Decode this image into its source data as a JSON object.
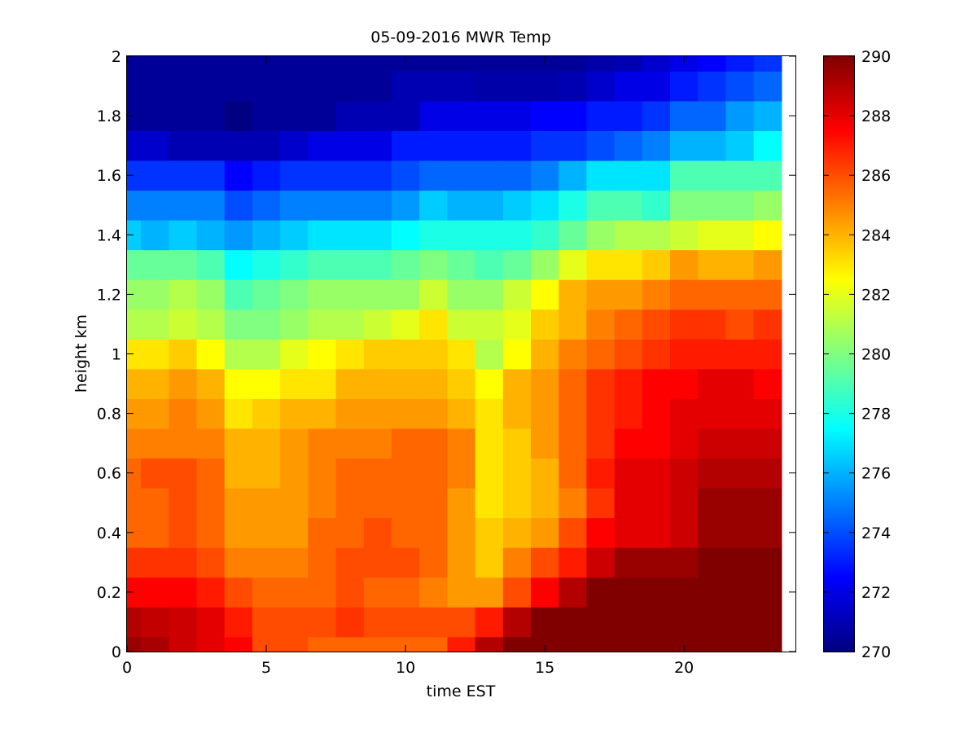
{
  "chart_data": {
    "type": "heatmap",
    "title": "05-09-2016 MWR Temp",
    "xlabel": "time EST",
    "ylabel": "height km",
    "xlim": [
      0,
      24
    ],
    "ylim": [
      0,
      2
    ],
    "x_ticks": [
      "0",
      "5",
      "10",
      "15",
      "20"
    ],
    "x_tick_values": [
      0,
      5,
      10,
      15,
      20
    ],
    "y_ticks": [
      "0",
      "0.2",
      "0.4",
      "0.6",
      "0.8",
      "1",
      "1.2",
      "1.4",
      "1.6",
      "1.8",
      "2"
    ],
    "y_tick_values": [
      0,
      0.2,
      0.4,
      0.6,
      0.8,
      1,
      1.2,
      1.4,
      1.6,
      1.8,
      2
    ],
    "colormap": "jet",
    "colorbar": {
      "limits": [
        270,
        290
      ],
      "ticks": [
        "270",
        "272",
        "274",
        "276",
        "278",
        "280",
        "282",
        "284",
        "286",
        "288",
        "290"
      ],
      "tick_values": [
        270,
        272,
        274,
        276,
        278,
        280,
        282,
        284,
        286,
        288,
        290
      ]
    },
    "x_edges": [
      0,
      0.5,
      1.5,
      2.5,
      3.5,
      4.5,
      5.5,
      6.5,
      7.5,
      8.5,
      9.5,
      10.5,
      11.5,
      12.5,
      13.5,
      14.5,
      15.5,
      16.5,
      17.5,
      18.5,
      19.5,
      20.5,
      21.5,
      22.5,
      23.5
    ],
    "y_edges": [
      0,
      0.05,
      0.15,
      0.25,
      0.35,
      0.45,
      0.55,
      0.65,
      0.75,
      0.85,
      0.95,
      1.05,
      1.15,
      1.25,
      1.35,
      1.45,
      1.55,
      1.65,
      1.75,
      1.85,
      1.95,
      2.0
    ],
    "values": [
      [
        289.5,
        289.2,
        288.5,
        288,
        287.5,
        286,
        286,
        285.5,
        285.5,
        285.5,
        285.5,
        285.5,
        287,
        289,
        290,
        290,
        290,
        290,
        290,
        290,
        290,
        290,
        290,
        290
      ],
      [
        289,
        288.7,
        288.5,
        288,
        287,
        286,
        286,
        286,
        286.5,
        286,
        286,
        286,
        286,
        287,
        289,
        290,
        290,
        290,
        290,
        290,
        290,
        290,
        290,
        290
      ],
      [
        287.5,
        287.5,
        287.5,
        287,
        286,
        285.5,
        285.5,
        285.5,
        286,
        285.5,
        285.5,
        285,
        284.5,
        284.5,
        286,
        287.5,
        289,
        290,
        290,
        290,
        290,
        290,
        290,
        290
      ],
      [
        286.5,
        286.5,
        286.5,
        286,
        285,
        285,
        285,
        285.5,
        286,
        286,
        286,
        285.5,
        284.5,
        283.5,
        285,
        286,
        287,
        288.5,
        289.5,
        289.5,
        289.5,
        290,
        290,
        290
      ],
      [
        285.5,
        285.5,
        286,
        285.5,
        284.5,
        284.5,
        284.5,
        285.5,
        285.5,
        286,
        285.5,
        285.5,
        284.5,
        283.5,
        284,
        284.5,
        286,
        287.5,
        288,
        288,
        288.5,
        289.5,
        289.5,
        289.5
      ],
      [
        285.5,
        285.5,
        286,
        285.5,
        284.5,
        284.5,
        284.5,
        285,
        285.5,
        285.5,
        285.5,
        285.5,
        284.5,
        283,
        283.5,
        284,
        285,
        286.5,
        288,
        288,
        288.5,
        289.5,
        289.5,
        289.5
      ],
      [
        285.5,
        286,
        286,
        285.5,
        284,
        284,
        284.5,
        285,
        285.5,
        285.5,
        285.5,
        285.5,
        285,
        283,
        283.5,
        284,
        285.5,
        287,
        288,
        288,
        288.5,
        289,
        289,
        289
      ],
      [
        285,
        285,
        285,
        285,
        284,
        284,
        284.5,
        285,
        285,
        285,
        285.5,
        285.5,
        285,
        283,
        283.5,
        284.5,
        285.5,
        286.5,
        287.5,
        287.5,
        288,
        288.5,
        288.5,
        288.5
      ],
      [
        284.5,
        284.5,
        285,
        284.5,
        283,
        283.5,
        284,
        284,
        284.5,
        284.5,
        284.5,
        284.5,
        284,
        283,
        284,
        284.5,
        285.5,
        286.5,
        287,
        287.5,
        288,
        288,
        288,
        288
      ],
      [
        284,
        284,
        284.5,
        284,
        282.5,
        282.5,
        283,
        283,
        284,
        284,
        284,
        284,
        283.5,
        282.5,
        284,
        284.5,
        285.5,
        286.5,
        287,
        287.5,
        287.5,
        288,
        288,
        287.5
      ],
      [
        283,
        283,
        283.5,
        282.5,
        281,
        281,
        282,
        282.5,
        283,
        283.5,
        283.5,
        283.5,
        283,
        281,
        282.5,
        284,
        285,
        285.5,
        286,
        286.5,
        287,
        287,
        287,
        287
      ],
      [
        281,
        281,
        281.5,
        281,
        280,
        280,
        280.5,
        281,
        281,
        281.5,
        282,
        283,
        281.5,
        281.5,
        282,
        283.5,
        284,
        285,
        285.5,
        286,
        286.5,
        286.5,
        286,
        286.5
      ],
      [
        280.5,
        280.5,
        281,
        280.5,
        279,
        279.5,
        280,
        280.5,
        280.5,
        280.5,
        280.5,
        281.5,
        280.5,
        280.5,
        281.5,
        282.5,
        284,
        284.5,
        284.5,
        285,
        285.5,
        285.5,
        285.5,
        285.5
      ],
      [
        279.5,
        279.5,
        279.5,
        279,
        277.5,
        278,
        278.5,
        279,
        279,
        279,
        279.5,
        280,
        279.5,
        279,
        279.5,
        280.5,
        282,
        283,
        283,
        283.5,
        284.5,
        284,
        284,
        284.5
      ],
      [
        276.5,
        276,
        276.5,
        276,
        275.5,
        276,
        276.5,
        277,
        277,
        277,
        277.5,
        278,
        278,
        278,
        278,
        278.5,
        279.5,
        280.5,
        281,
        281,
        281.5,
        282,
        282,
        282.5
      ],
      [
        275,
        275,
        275,
        275,
        274,
        274.5,
        275,
        275,
        275,
        275,
        275.5,
        276.5,
        276,
        276,
        276.5,
        277,
        278,
        279,
        279,
        278.5,
        280,
        280,
        280,
        280.5
      ],
      [
        273.5,
        273.5,
        273.5,
        273.5,
        272.5,
        273,
        273.5,
        273.5,
        273.5,
        273.5,
        274,
        274.5,
        274.5,
        274.5,
        274.5,
        275,
        276,
        277,
        277,
        277,
        279,
        279,
        279,
        279
      ],
      [
        271.5,
        271.5,
        271,
        271,
        271,
        271,
        271.5,
        272,
        272,
        272,
        273,
        273,
        273,
        273,
        273,
        273.5,
        273.5,
        274,
        274.5,
        275,
        276,
        276,
        276.5,
        277.5
      ],
      [
        270.5,
        270.5,
        270.5,
        270.5,
        270,
        270.5,
        270.5,
        270.5,
        271,
        271,
        271,
        272,
        272,
        272,
        272,
        272.5,
        272.5,
        273,
        273,
        273.5,
        274.5,
        274.5,
        275.5,
        276
      ],
      [
        270.5,
        270.5,
        270.5,
        270.5,
        270.5,
        270.5,
        270.5,
        270.5,
        270.5,
        270.5,
        271,
        271,
        271,
        270.8,
        270.8,
        270.8,
        271,
        271.5,
        272,
        272,
        273,
        273.5,
        274,
        274.5
      ],
      [
        270.5,
        270.5,
        270.5,
        270.5,
        270.5,
        270.5,
        270.5,
        270.5,
        270.5,
        270.5,
        270.5,
        270.5,
        270.5,
        270.5,
        270.5,
        270.5,
        270.5,
        270.8,
        271,
        271.5,
        272,
        272.5,
        273,
        273.5
      ]
    ]
  }
}
